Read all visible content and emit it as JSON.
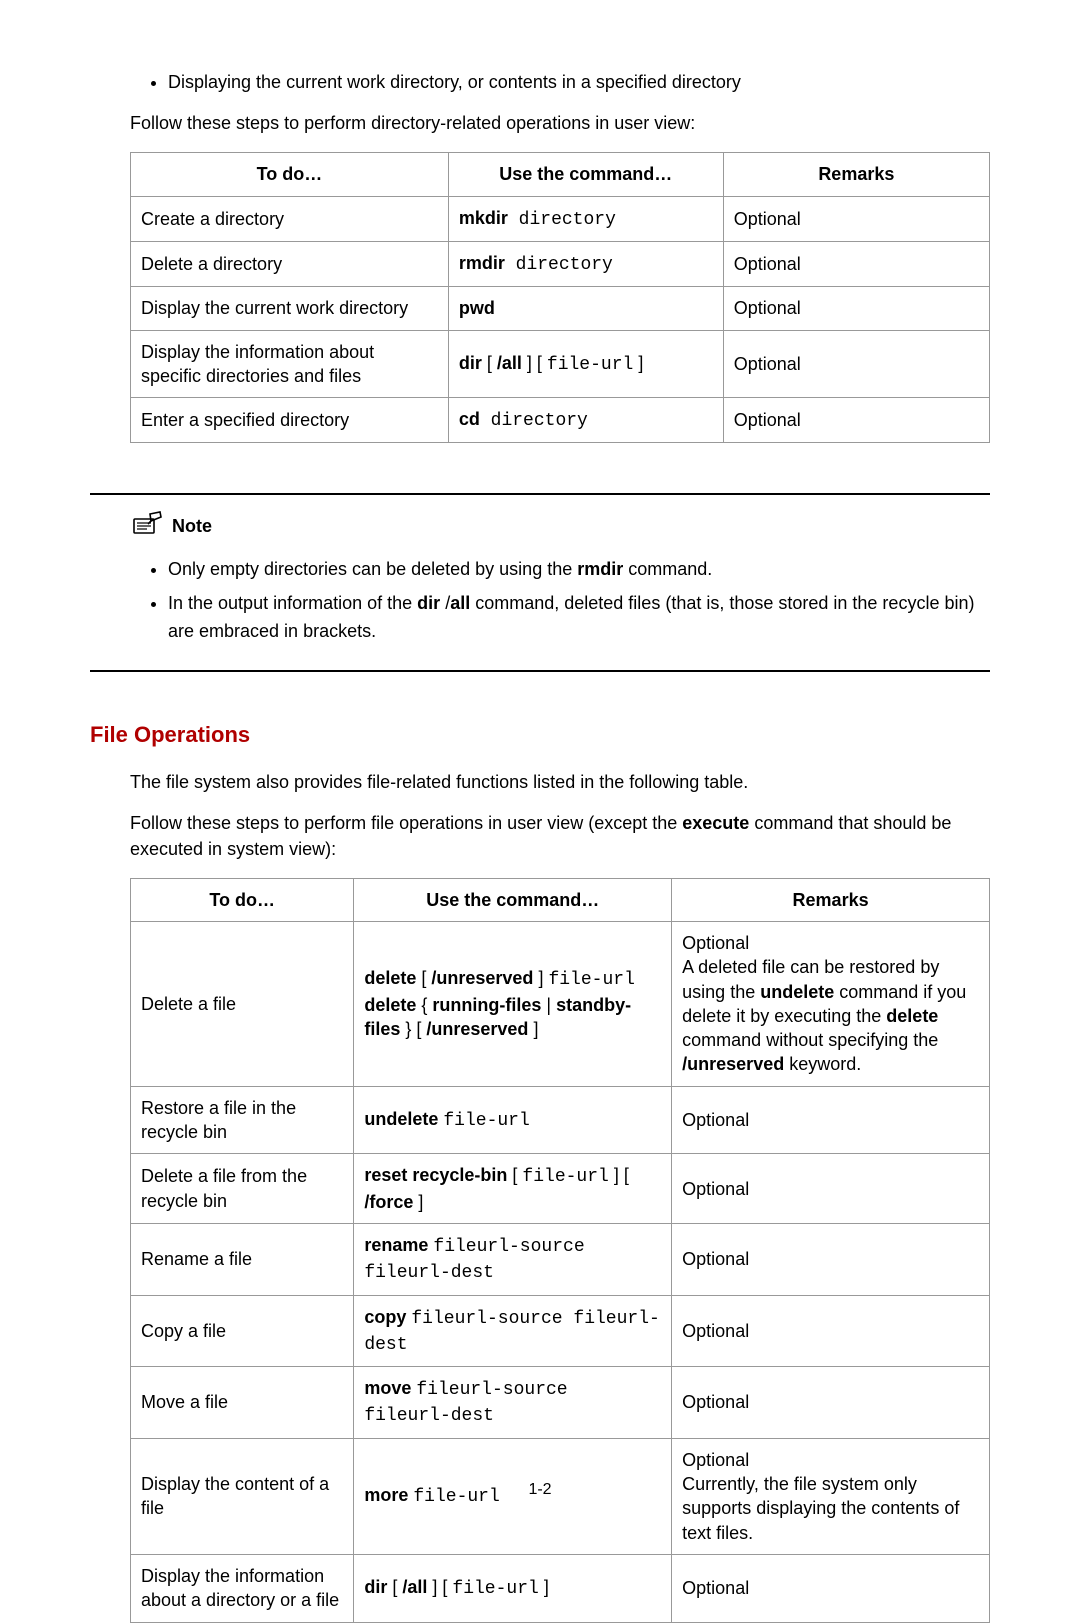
{
  "intro": {
    "bullet": "Displaying the current work directory, or contents in a specified directory",
    "para": "Follow these steps to perform directory-related operations in user view:"
  },
  "table1": {
    "headers": [
      "To do…",
      "Use the command…",
      "Remarks"
    ],
    "col_widths": [
      "37%",
      "32%",
      "31%"
    ],
    "rows": [
      {
        "todo": "Create a directory",
        "cmd_bold": "mkdir",
        "cmd_mono": " directory",
        "cmd_plain": "",
        "remarks": "Optional"
      },
      {
        "todo": "Delete a directory",
        "cmd_bold": "rmdir",
        "cmd_mono": " directory",
        "cmd_plain": "",
        "remarks": "Optional"
      },
      {
        "todo": "Display the current work directory",
        "cmd_bold": "pwd",
        "cmd_mono": "",
        "cmd_plain": "",
        "remarks": "Optional"
      },
      {
        "todo": "Display the information about specific directories and files",
        "cmd_bold": "dir",
        "cmd_plain": " [ ",
        "cmd_bold2": "/all",
        "cmd_plain2": " ] [ ",
        "cmd_mono": "file-url",
        "cmd_plain3": " ]",
        "remarks": "Optional"
      },
      {
        "todo": "Enter a specified directory",
        "cmd_bold": "cd",
        "cmd_mono": " directory",
        "cmd_plain": "",
        "remarks": "Optional"
      }
    ]
  },
  "note": {
    "label": "Note",
    "items": [
      {
        "pre": "Only empty directories can be deleted by using the ",
        "bold": "rmdir",
        "post": " command."
      },
      {
        "pre": "In the output information of the ",
        "bold": "dir",
        "mid": " /",
        "bold2": "all",
        "post": " command, deleted files (that is, those stored in the recycle bin) are embraced in brackets."
      }
    ]
  },
  "section": {
    "title": "File Operations",
    "title_color": "#b00000",
    "title_fontsize": 22,
    "para1": "The file system also provides file-related functions listed in the following table.",
    "para2_pre": "Follow these steps to perform file operations in user view (except the ",
    "para2_bold": "execute",
    "para2_post": " command that should be executed in system view):"
  },
  "table2": {
    "headers": [
      "To do…",
      "Use the command…",
      "Remarks"
    ],
    "col_widths": [
      "26%",
      "37%",
      "37%"
    ],
    "rows": [
      {
        "todo": "Delete a file",
        "cmd_html": "<span class=\"bold\">delete</span> [ <span class=\"bold\">/unreserved</span> ] <span class=\"mono\">file-url</span><br><span class=\"bold\">delete</span> { <span class=\"bold\">running-files</span> | <span class=\"bold\">standby-files</span> } [ <span class=\"bold\">/unreserved</span> ]",
        "remarks_html": "Optional<br>A deleted file can be restored by using the <span class=\"bold\">undelete</span> command if you delete it by executing the <span class=\"bold\">delete</span> command without specifying the <span class=\"bold\">/unreserved</span> keyword."
      },
      {
        "todo": "Restore a file in the recycle bin",
        "cmd_html": "<span class=\"bold\">undelete</span> <span class=\"mono\">file-url</span>",
        "remarks_html": "Optional"
      },
      {
        "todo": "Delete a file from the recycle bin",
        "cmd_html": "<span class=\"bold\">reset recycle-bin</span> [ <span class=\"mono\">file-url</span> ] [ <span class=\"bold\">/force</span> ]",
        "remarks_html": "Optional"
      },
      {
        "todo": "Rename a file",
        "cmd_html": "<span class=\"bold\">rename</span> <span class=\"mono\">fileurl-source fileurl-dest</span>",
        "remarks_html": "Optional"
      },
      {
        "todo": "Copy a file",
        "cmd_html": "<span class=\"bold\">copy</span> <span class=\"mono\">fileurl-source fileurl-dest</span>",
        "remarks_html": "Optional"
      },
      {
        "todo": "Move a file",
        "cmd_html": "<span class=\"bold\">move</span> <span class=\"mono\">fileurl-source fileurl-dest</span>",
        "remarks_html": "Optional"
      },
      {
        "todo": "Display the content of a file",
        "cmd_html": "<span class=\"bold\">more</span> <span class=\"mono\">file-url</span>",
        "remarks_html": "Optional<br>Currently, the file system only supports displaying the contents of text files."
      },
      {
        "todo": "Display the information about a directory or a file",
        "cmd_html": "<span class=\"bold\">dir</span> [ <span class=\"bold\">/all</span> ] [ <span class=\"mono\">file-url</span> ]",
        "remarks_html": "Optional"
      }
    ]
  },
  "footer": {
    "page": "1-2"
  },
  "colors": {
    "text": "#000000",
    "heading": "#b00000",
    "border": "#999999",
    "background": "#ffffff"
  },
  "typography": {
    "body_font": "Arial",
    "body_size_pt": 13,
    "mono_font": "Courier New",
    "heading_weight": "bold"
  }
}
